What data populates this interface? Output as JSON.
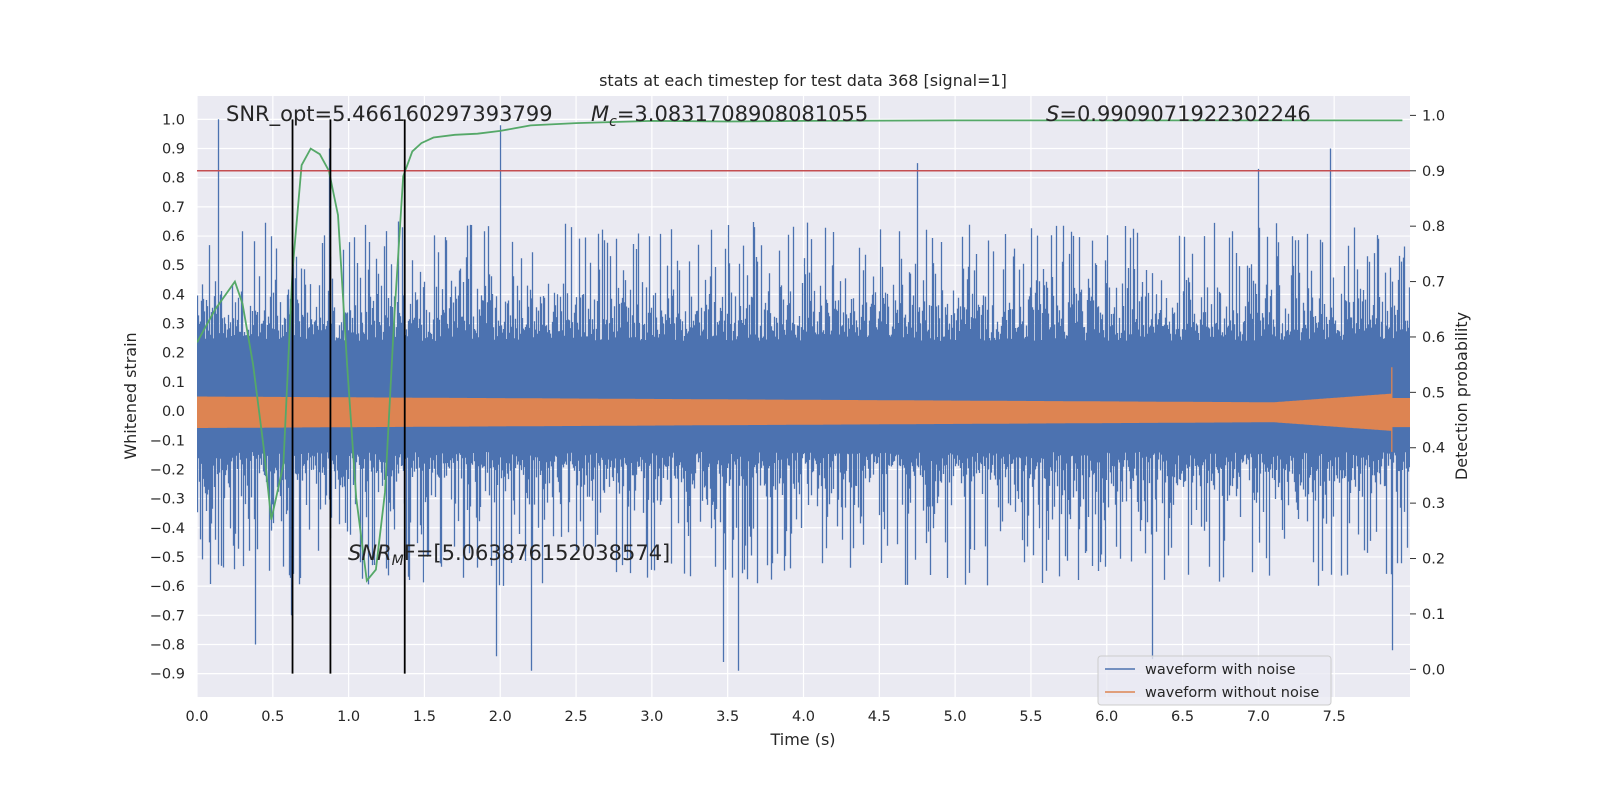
{
  "chart_data": {
    "type": "line",
    "title": "stats at each timestep for test data 368 [signal=1]",
    "xlabel": "Time (s)",
    "ylabel": "Whitened strain",
    "ylabel_right": "Detection probability",
    "xlim": [
      0,
      8
    ],
    "ylim": [
      -0.98,
      1.08
    ],
    "ylim_right": [
      -0.05,
      1.035
    ],
    "x_ticks": [
      0.0,
      0.5,
      1.0,
      1.5,
      2.0,
      2.5,
      3.0,
      3.5,
      4.0,
      4.5,
      5.0,
      5.5,
      6.0,
      6.5,
      7.0,
      7.5
    ],
    "x_tick_labels": [
      "0.0",
      "0.5",
      "1.0",
      "1.5",
      "2.0",
      "2.5",
      "3.0",
      "3.5",
      "4.0",
      "4.5",
      "5.0",
      "5.5",
      "6.0",
      "6.5",
      "7.0",
      "7.5"
    ],
    "y_ticks": [
      1.0,
      0.9,
      0.8,
      0.7,
      0.6,
      0.5,
      0.4,
      0.3,
      0.2,
      0.1,
      0.0,
      -0.1,
      -0.2,
      -0.3,
      -0.4,
      -0.5,
      -0.6,
      -0.7,
      -0.8,
      -0.9
    ],
    "y_tick_labels": [
      "1.0",
      "0.9",
      "0.8",
      "0.7",
      "0.6",
      "0.5",
      "0.4",
      "0.3",
      "0.2",
      "0.1",
      "0.0",
      "−0.1",
      "−0.2",
      "−0.3",
      "−0.4",
      "−0.5",
      "−0.6",
      "−0.7",
      "−0.8",
      "−0.9"
    ],
    "y_right_ticks": [
      1.0,
      0.9,
      0.8,
      0.7,
      0.6,
      0.5,
      0.4,
      0.3,
      0.2,
      0.1,
      0.0
    ],
    "y_right_tick_labels": [
      "1.0",
      "0.9",
      "0.8",
      "0.7",
      "0.6",
      "0.5",
      "0.4",
      "0.3",
      "0.2",
      "0.1",
      "0.0"
    ],
    "grid": true,
    "legend_position": "lower-right",
    "colors": {
      "noise": "#4c72b0",
      "clean": "#dd8452",
      "prob": "#55a868",
      "threshold": "#c44e52",
      "marker": "#000000",
      "background": "#eaeaf2"
    },
    "series": [
      {
        "name": "waveform with noise",
        "kind": "noisy-strain",
        "envelope_typical": 0.45,
        "dense_band": [
          -0.14,
          0.24
        ],
        "peaks": [
          {
            "x": 0.14,
            "y": 1.0
          },
          {
            "x": 0.62,
            "y": -0.7
          },
          {
            "x": 0.87,
            "y": 0.9
          },
          {
            "x": 0.38,
            "y": -0.8
          },
          {
            "x": 1.97,
            "y": -0.84
          },
          {
            "x": 2.0,
            "y": 0.98
          },
          {
            "x": 2.2,
            "y": -0.89
          },
          {
            "x": 3.47,
            "y": -0.86
          },
          {
            "x": 3.57,
            "y": -0.89
          },
          {
            "x": 4.75,
            "y": 0.85
          },
          {
            "x": 6.3,
            "y": -0.85
          },
          {
            "x": 7.0,
            "y": 0.83
          },
          {
            "x": 7.47,
            "y": 0.9
          },
          {
            "x": 7.88,
            "y": -0.82
          }
        ]
      },
      {
        "name": "waveform without noise",
        "kind": "chirp",
        "amplitude_start": 0.05,
        "amplitude_end": 0.03,
        "merger_time": 7.88,
        "merger_peak": 0.15,
        "merger_trough": -0.14
      },
      {
        "name": "",
        "axis": "right",
        "kind": "detection-probability",
        "x": [
          0.0,
          0.12,
          0.25,
          0.3,
          0.37,
          0.44,
          0.49,
          0.57,
          0.63,
          0.69,
          0.75,
          0.81,
          0.87,
          0.93,
          0.99,
          1.05,
          1.12,
          1.18,
          1.24,
          1.3,
          1.36,
          1.42,
          1.48,
          1.56,
          1.7,
          1.85,
          2.0,
          2.2,
          2.5,
          3.0,
          3.5,
          4.0,
          5.0,
          6.0,
          7.0,
          7.95
        ],
        "y": [
          0.59,
          0.65,
          0.7,
          0.66,
          0.55,
          0.4,
          0.27,
          0.37,
          0.72,
          0.91,
          0.94,
          0.93,
          0.9,
          0.82,
          0.55,
          0.31,
          0.16,
          0.18,
          0.32,
          0.63,
          0.89,
          0.935,
          0.95,
          0.96,
          0.965,
          0.967,
          0.972,
          0.982,
          0.986,
          0.99,
          0.989,
          0.99,
          0.991,
          0.991,
          0.991,
          0.991
        ]
      }
    ],
    "threshold_right": 0.9,
    "vertical_markers": [
      0.63,
      0.88,
      1.37
    ],
    "vertical_marker_range": [
      -0.9,
      1.0
    ],
    "annotations": {
      "snr_opt": "SNR_opt=5.466160297393799",
      "mc_symbol": "M",
      "mc_sub": "c",
      "mc_value": "=3.0831708908081055",
      "s_symbol": "S",
      "s_value": "=0.9909071922302246",
      "snr_mf_symbol": "SNR",
      "snr_mf_sub": "M",
      "snr_mf_value": "F=[5.063876152038574]"
    },
    "legend": [
      {
        "label": "waveform with noise",
        "color": "#4c72b0"
      },
      {
        "label": "waveform without noise",
        "color": "#dd8452"
      }
    ]
  }
}
